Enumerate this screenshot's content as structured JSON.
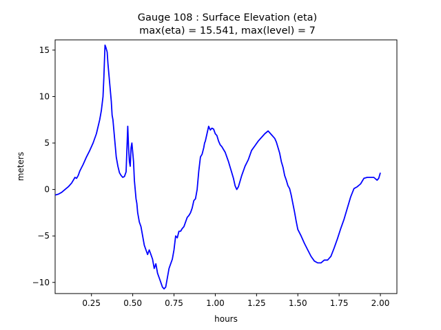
{
  "chart_data": {
    "type": "line",
    "title_line1": "Gauge 108 : Surface Elevation (eta)",
    "title_line2": "max(eta) =  15.541,    max(level) = 7",
    "xlabel": "hours",
    "ylabel": "meters",
    "xlim": [
      0.03,
      2.1
    ],
    "ylim": [
      -11.2,
      16.1
    ],
    "xticks": [
      0.25,
      0.5,
      0.75,
      1.0,
      1.25,
      1.5,
      1.75,
      2.0
    ],
    "xtick_labels": [
      "0.25",
      "0.50",
      "0.75",
      "1.00",
      "1.25",
      "1.50",
      "1.75",
      "2.00"
    ],
    "yticks": [
      -10,
      -5,
      0,
      5,
      10,
      15
    ],
    "ytick_labels": [
      "−10",
      "−5",
      "0",
      "5",
      "10",
      "15"
    ],
    "grid": false,
    "line_color": "#0000ff",
    "series": [
      {
        "x": [
          0.03,
          0.05,
          0.07,
          0.09,
          0.11,
          0.13,
          0.15,
          0.16,
          0.17,
          0.18,
          0.2,
          0.22,
          0.24,
          0.26,
          0.28,
          0.3,
          0.31,
          0.32,
          0.325,
          0.33,
          0.332,
          0.337,
          0.345,
          0.35,
          0.36,
          0.37,
          0.375,
          0.38,
          0.385,
          0.39,
          0.395,
          0.4,
          0.41,
          0.42,
          0.43,
          0.44,
          0.45,
          0.46,
          0.47,
          0.475,
          0.48,
          0.485,
          0.49,
          0.495,
          0.5,
          0.505,
          0.51,
          0.515,
          0.52,
          0.525,
          0.53,
          0.54,
          0.55,
          0.56,
          0.57,
          0.58,
          0.59,
          0.6,
          0.61,
          0.62,
          0.63,
          0.64,
          0.65,
          0.66,
          0.67,
          0.68,
          0.69,
          0.7,
          0.71,
          0.72,
          0.73,
          0.74,
          0.75,
          0.76,
          0.77,
          0.78,
          0.79,
          0.8,
          0.81,
          0.82,
          0.83,
          0.84,
          0.85,
          0.86,
          0.87,
          0.88,
          0.89,
          0.9,
          0.91,
          0.92,
          0.93,
          0.935,
          0.94,
          0.95,
          0.96,
          0.97,
          0.98,
          0.99,
          1.0,
          1.01,
          1.02,
          1.03,
          1.04,
          1.05,
          1.06,
          1.07,
          1.08,
          1.09,
          1.1,
          1.11,
          1.12,
          1.13,
          1.14,
          1.15,
          1.16,
          1.17,
          1.18,
          1.2,
          1.22,
          1.24,
          1.26,
          1.28,
          1.3,
          1.32,
          1.34,
          1.36,
          1.37,
          1.38,
          1.39,
          1.4,
          1.41,
          1.42,
          1.43,
          1.44,
          1.45,
          1.46,
          1.47,
          1.48,
          1.49,
          1.5,
          1.52,
          1.54,
          1.56,
          1.58,
          1.6,
          1.62,
          1.64,
          1.66,
          1.68,
          1.7,
          1.72,
          1.74,
          1.76,
          1.78,
          1.8,
          1.82,
          1.84,
          1.86,
          1.88,
          1.9,
          1.92,
          1.94,
          1.96,
          1.98,
          1.99,
          2.0
        ],
        "y": [
          -0.6,
          -0.5,
          -0.3,
          0.0,
          0.3,
          0.7,
          1.3,
          1.2,
          1.5,
          2.0,
          2.7,
          3.5,
          4.2,
          5.0,
          6.0,
          7.5,
          8.5,
          10.0,
          12.0,
          14.5,
          15.541,
          15.3,
          14.8,
          13.5,
          11.5,
          9.5,
          8.0,
          7.5,
          6.5,
          5.5,
          4.5,
          3.5,
          2.5,
          1.8,
          1.5,
          1.3,
          1.4,
          1.9,
          6.8,
          4.5,
          3.0,
          2.5,
          4.5,
          5.0,
          4.0,
          3.0,
          1.0,
          0.0,
          -1.0,
          -1.5,
          -2.5,
          -3.5,
          -4.0,
          -5.0,
          -6.0,
          -6.5,
          -7.0,
          -6.5,
          -7.0,
          -7.5,
          -8.5,
          -8.0,
          -9.0,
          -9.5,
          -10.0,
          -10.5,
          -10.7,
          -10.5,
          -9.5,
          -8.5,
          -8.0,
          -7.5,
          -6.5,
          -5.0,
          -5.2,
          -4.5,
          -4.5,
          -4.2,
          -4.0,
          -3.5,
          -3.0,
          -2.8,
          -2.5,
          -2.0,
          -1.2,
          -1.0,
          0.0,
          2.0,
          3.5,
          3.8,
          4.5,
          5.0,
          5.2,
          6.0,
          6.8,
          6.4,
          6.6,
          6.5,
          6.0,
          5.8,
          5.2,
          4.8,
          4.6,
          4.3,
          4.0,
          3.5,
          3.0,
          2.4,
          1.8,
          1.2,
          0.4,
          0.0,
          0.3,
          0.9,
          1.5,
          2.0,
          2.5,
          3.2,
          4.2,
          4.7,
          5.2,
          5.6,
          6.0,
          6.3,
          5.9,
          5.5,
          5.1,
          4.5,
          3.9,
          3.0,
          2.4,
          1.5,
          1.0,
          0.4,
          0.1,
          -0.6,
          -1.5,
          -2.4,
          -3.4,
          -4.3,
          -5.0,
          -5.8,
          -6.5,
          -7.2,
          -7.7,
          -7.9,
          -7.9,
          -7.6,
          -7.6,
          -7.2,
          -6.3,
          -5.3,
          -4.2,
          -3.2,
          -2.0,
          -0.8,
          0.1,
          0.3,
          0.6,
          1.2,
          1.3,
          1.3,
          1.3,
          1.0,
          1.2,
          1.8
        ]
      }
    ]
  }
}
